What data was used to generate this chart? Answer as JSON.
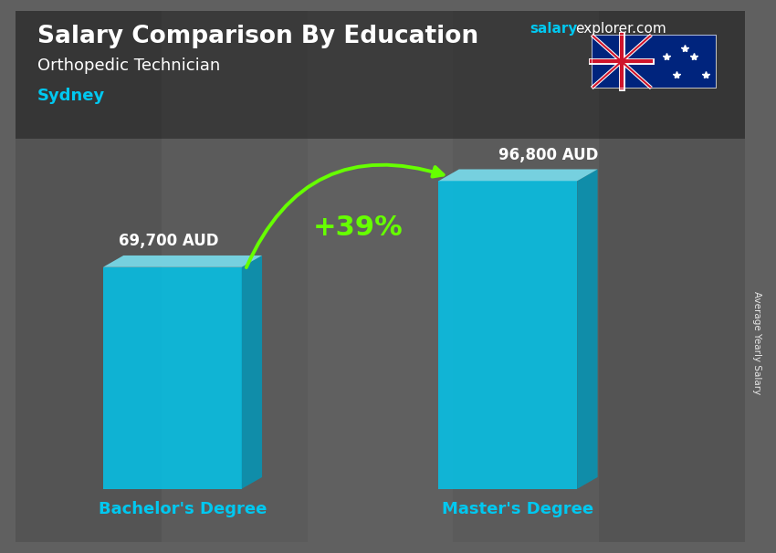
{
  "title_main": "Salary Comparison By Education",
  "title_sub": "Orthopedic Technician",
  "city": "Sydney",
  "site_salary": "salary",
  "site_explorer": "explorer.com",
  "categories": [
    "Bachelor's Degree",
    "Master's Degree"
  ],
  "values": [
    69700,
    96800
  ],
  "value_labels": [
    "69,700 AUD",
    "96,800 AUD"
  ],
  "bar_color_front": "#00C8F0",
  "bar_color_top": "#7ADEEE",
  "bar_color_side": "#0099BB",
  "pct_change": "+39%",
  "pct_color": "#66FF00",
  "arrow_color": "#66FF00",
  "ylabel_rotated": "Average Yearly Salary",
  "bg_color": "#555555",
  "text_color_white": "#FFFFFF",
  "text_color_cyan": "#00C8F0",
  "figsize": [
    8.5,
    6.06
  ],
  "dpi": 100
}
